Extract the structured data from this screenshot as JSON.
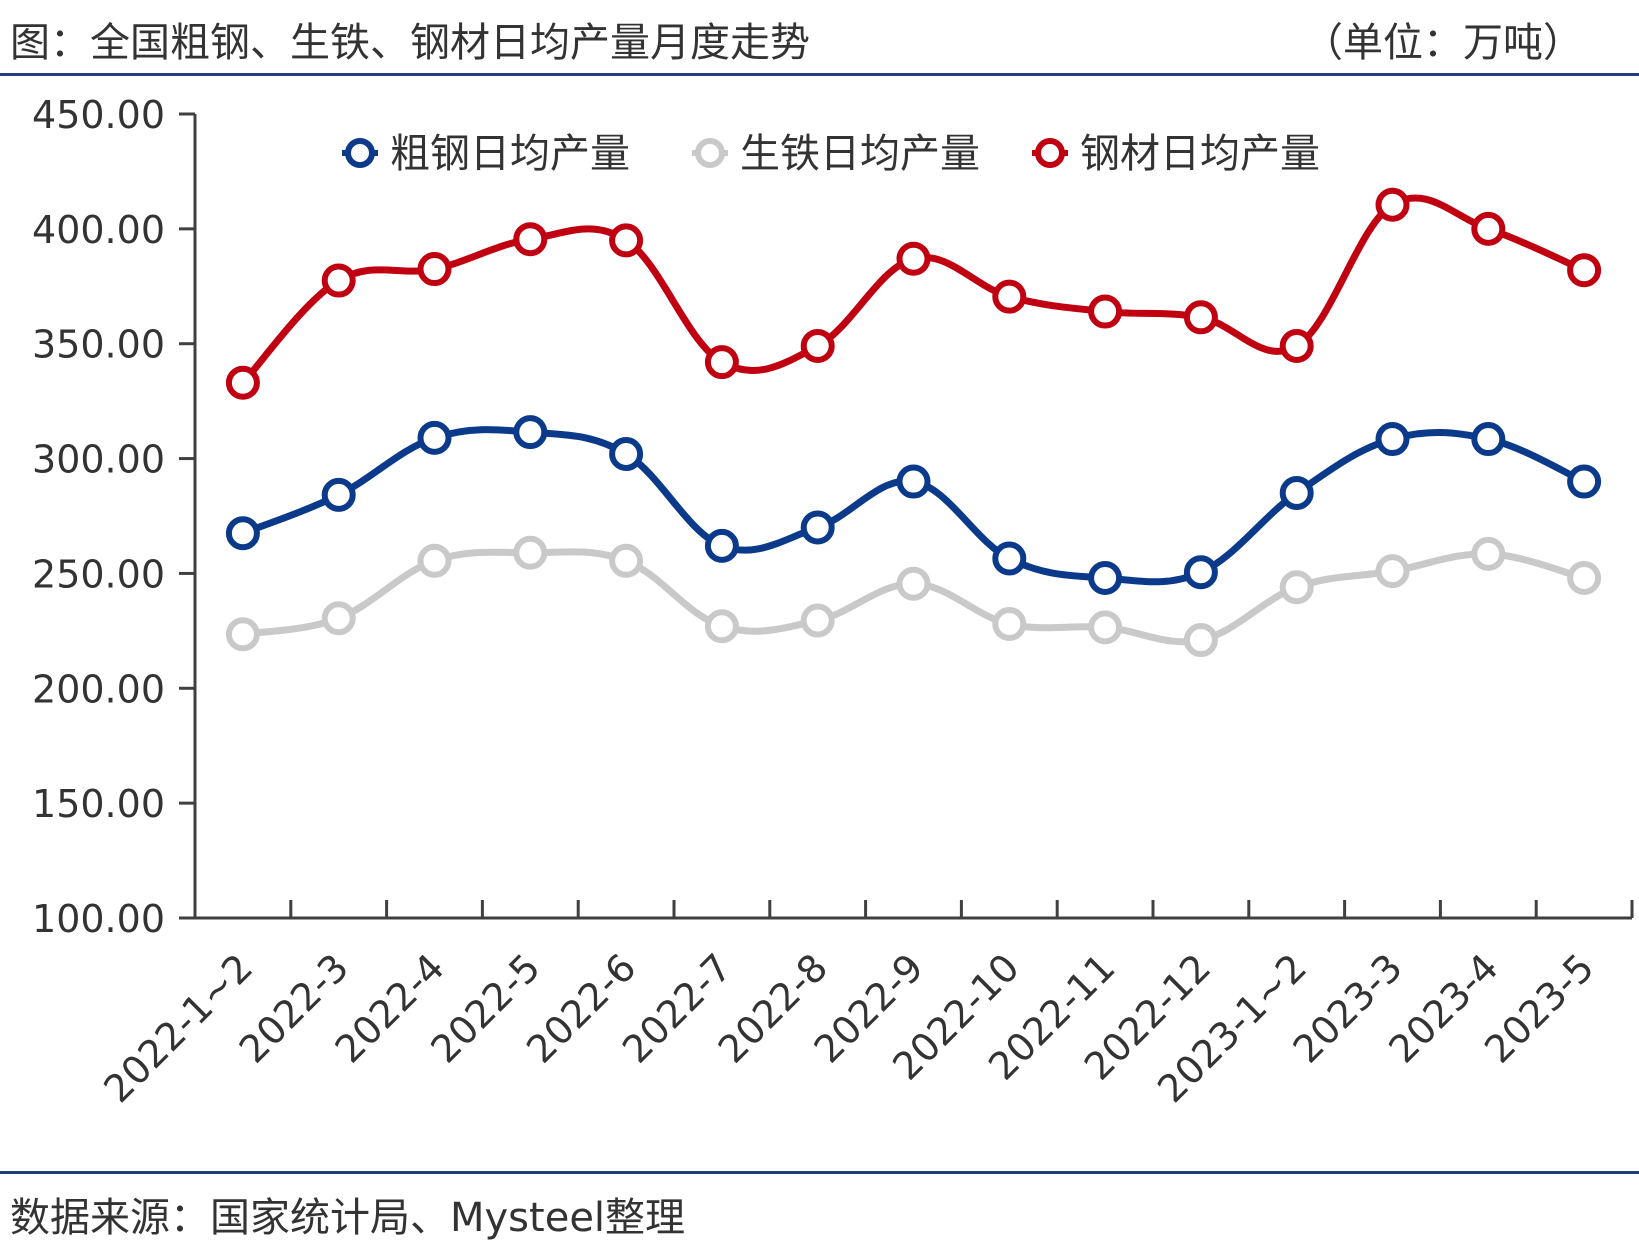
{
  "header": {
    "title": "图：全国粗钢、生铁、钢材日均产量月度走势",
    "unit": "（单位：万吨）"
  },
  "footer": {
    "source": "数据来源：国家统计局、Mysteel整理"
  },
  "colors": {
    "rule": "#1f3e7a",
    "axis": "#404040",
    "text": "#333333"
  },
  "chart_data": {
    "type": "line",
    "categories": [
      "2022-1~2",
      "2022-3",
      "2022-4",
      "2022-5",
      "2022-6",
      "2022-7",
      "2022-8",
      "2022-9",
      "2022-10",
      "2022-11",
      "2022-12",
      "2023-1~2",
      "2023-3",
      "2023-4",
      "2023-5"
    ],
    "ylim": [
      100,
      450
    ],
    "yticks": [
      100,
      150,
      200,
      250,
      300,
      350,
      400,
      450
    ],
    "ytick_labels": [
      "100.00",
      "150.00",
      "200.00",
      "250.00",
      "300.00",
      "350.00",
      "400.00",
      "450.00"
    ],
    "legend_position": "top",
    "grid": false,
    "series": [
      {
        "name": "粗钢日均产量",
        "color": "#0b3a8a",
        "values": [
          267.5,
          284.2,
          309.0,
          311.5,
          302.0,
          262.0,
          270.0,
          290.0,
          256.5,
          248.0,
          250.5,
          285.0,
          308.5,
          308.5,
          290.0
        ]
      },
      {
        "name": "生铁日均产量",
        "color": "#c9c9c9",
        "values": [
          223.5,
          230.5,
          255.5,
          259.0,
          255.5,
          227.0,
          229.5,
          245.5,
          228.0,
          226.5,
          221.0,
          244.0,
          251.0,
          258.5,
          248.0
        ]
      },
      {
        "name": "钢材日均产量",
        "color": "#c00010",
        "values": [
          333.0,
          377.5,
          382.5,
          395.5,
          395.0,
          342.0,
          349.0,
          387.0,
          370.5,
          364.0,
          361.5,
          349.0,
          410.5,
          400.0,
          382.0
        ]
      }
    ]
  }
}
